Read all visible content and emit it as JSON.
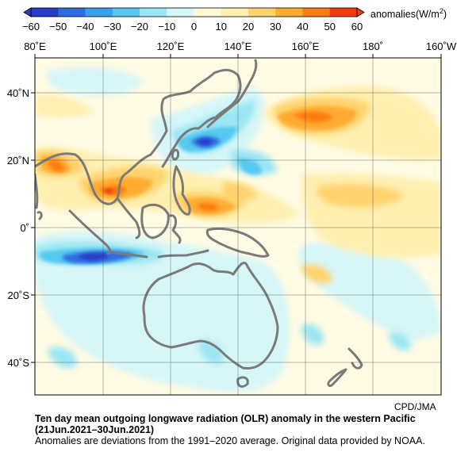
{
  "colorbar": {
    "ticks": [
      "−60",
      "−50",
      "−40",
      "−30",
      "−20",
      "−10",
      "0",
      "10",
      "20",
      "30",
      "40",
      "50",
      "60"
    ],
    "unit_label": "anomalies(W/m",
    "unit_sup": "2",
    "unit_close": ")",
    "colors": [
      "#2a3bc8",
      "#2e6de0",
      "#3aa0ec",
      "#55c9f0",
      "#9be6f4",
      "#d6f6f8",
      "#fffad8",
      "#fff0b0",
      "#ffd36e",
      "#ffab30",
      "#ff7a10",
      "#ee3a0c"
    ]
  },
  "axes": {
    "lon_labels": [
      "80˚E",
      "100˚E",
      "120˚E",
      "140˚E",
      "160˚E",
      "180˚",
      "160˚W"
    ],
    "lat_labels": [
      "40˚N",
      "20˚N",
      "0˚",
      "20˚S",
      "40˚S"
    ]
  },
  "credit": "CPD/JMA",
  "caption": {
    "title": "Ten day mean outgoing longwave radiation (OLR) anomaly in the western Pacific",
    "period": "(21Jun.2021–30Jun.2021)",
    "note": "Anomalies are deviations from the 1991–2020 average. Original data provided by NOAA."
  }
}
